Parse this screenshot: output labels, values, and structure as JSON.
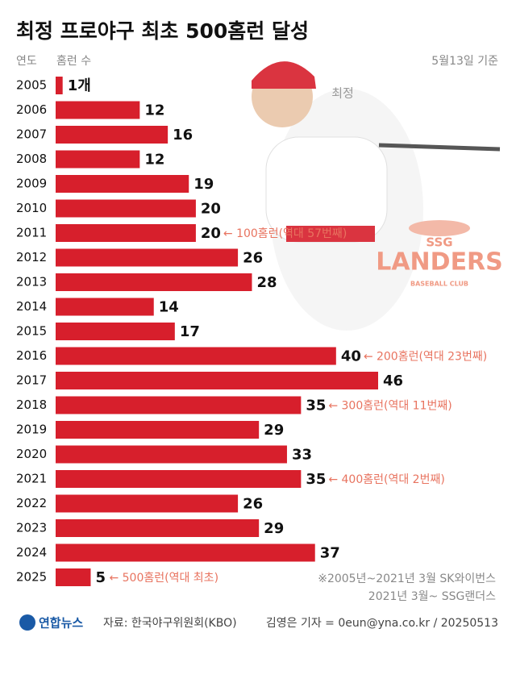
{
  "chart_data": {
    "type": "bar",
    "orientation": "horizontal",
    "title": "최정 프로야구 최초 500홈런 달성",
    "category_header": "연도",
    "value_header": "홈런 수",
    "date_note": "5월13일 기준",
    "player_label": "최정",
    "categories": [
      "2005",
      "2006",
      "2007",
      "2008",
      "2009",
      "2010",
      "2011",
      "2012",
      "2013",
      "2014",
      "2015",
      "2016",
      "2017",
      "2018",
      "2019",
      "2020",
      "2021",
      "2022",
      "2023",
      "2024",
      "2025"
    ],
    "values": [
      1,
      12,
      16,
      12,
      19,
      20,
      20,
      26,
      28,
      14,
      17,
      40,
      46,
      35,
      29,
      33,
      35,
      26,
      29,
      37,
      5
    ],
    "value_labels": [
      "1개",
      "12",
      "16",
      "12",
      "19",
      "20",
      "20",
      "26",
      "28",
      "14",
      "17",
      "40",
      "46",
      "35",
      "29",
      "33",
      "35",
      "26",
      "29",
      "37",
      "5"
    ],
    "color": "#d71f2c",
    "annotations": [
      {
        "category": "2011",
        "text": "← 100홈런(역대 57번째)"
      },
      {
        "category": "2016",
        "text": "← 200홈런(역대 23번째)"
      },
      {
        "category": "2018",
        "text": "← 300홈런(역대 11번째)"
      },
      {
        "category": "2021",
        "text": "← 400홈런(역대 2번째)"
      },
      {
        "category": "2025",
        "text": "← 500홈런(역대 최초)"
      }
    ],
    "annotation_color": "#e8735f",
    "notes": [
      "※2005년~2021년 3월 SK와이번스",
      "2021년 3월~ SSG랜더스"
    ],
    "logo": {
      "top": "SSG",
      "main": "LANDERS",
      "bottom": "BASEBALL CLUB"
    }
  },
  "footer": {
    "agency": "연합뉴스",
    "source": "자료: 한국야구위원회(KBO)",
    "credit": "김영은 기자 = 0eun@yna.co.kr / 20250513"
  }
}
